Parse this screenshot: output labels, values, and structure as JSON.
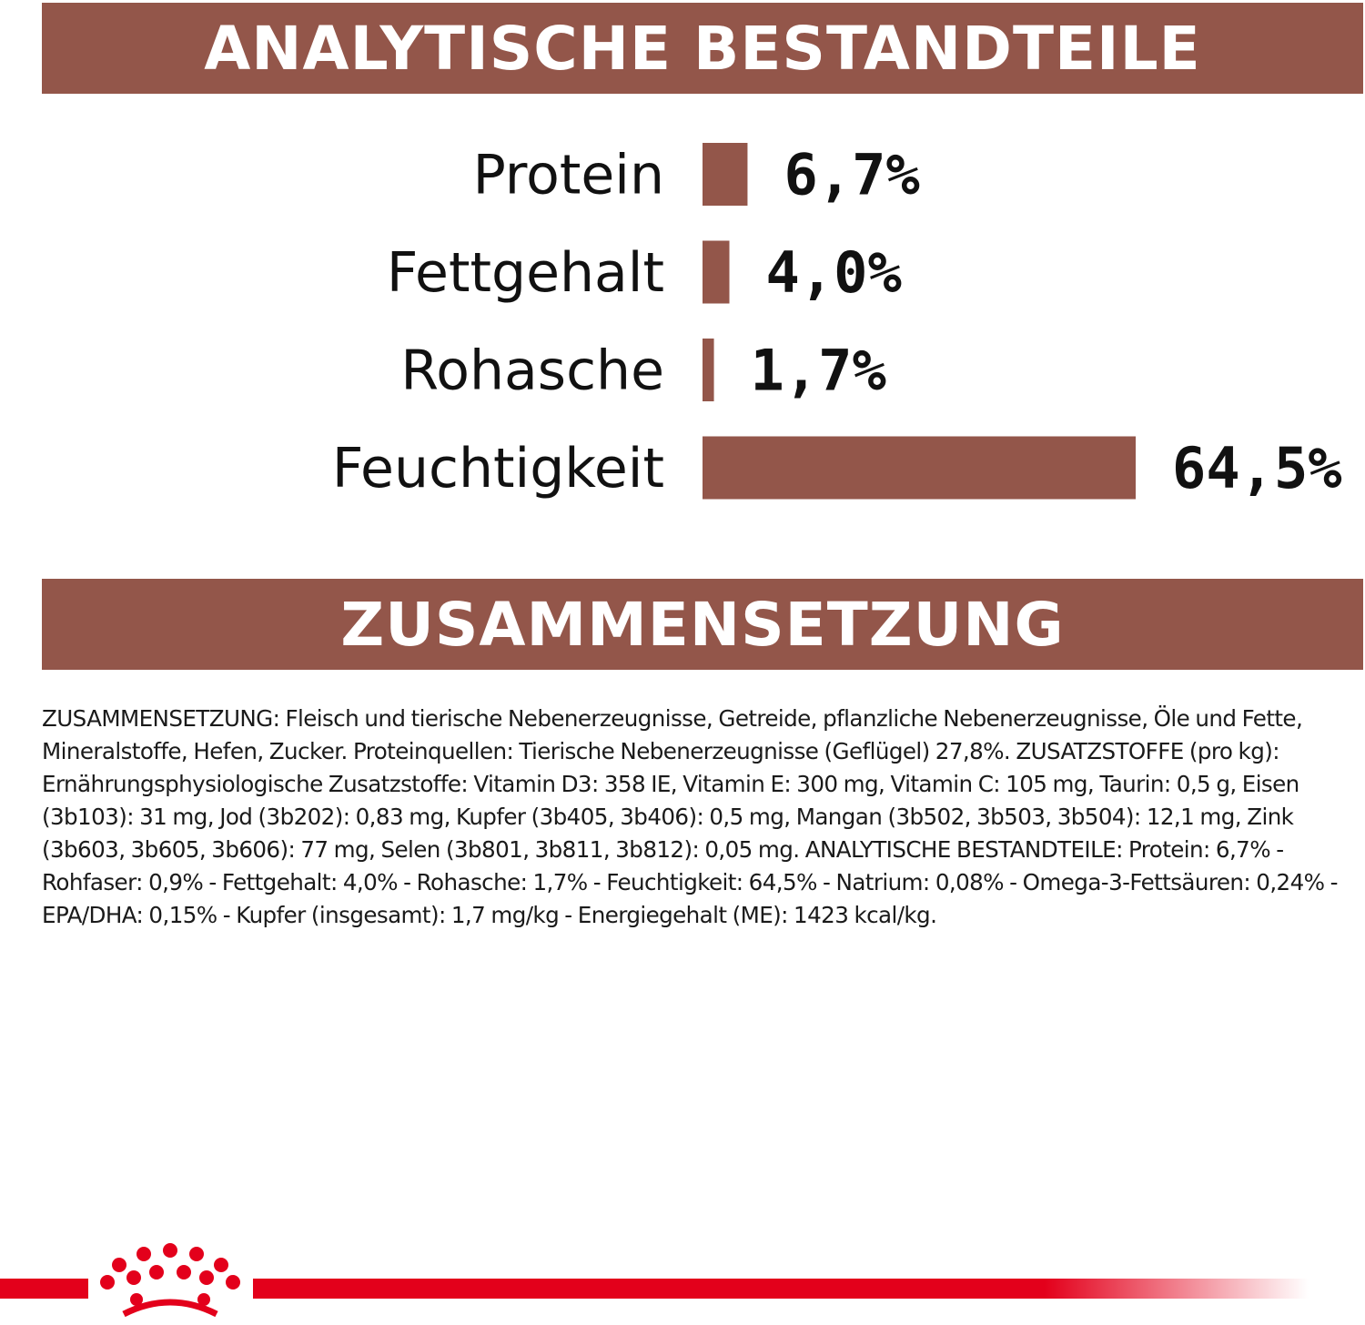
{
  "colors": {
    "accent": "#93564a",
    "brand_red": "#e3001b",
    "text": "#111111",
    "background": "#ffffff"
  },
  "header": {
    "analytics_title": "ANALYTISCHE BESTANDTEILE",
    "composition_title": "ZUSAMMENSETZUNG"
  },
  "chart_data": {
    "type": "bar",
    "orientation": "horizontal",
    "categories": [
      "Protein",
      "Fettgehalt",
      "Rohasche",
      "Feuchtigkeit"
    ],
    "values": [
      6.7,
      4.0,
      1.7,
      64.5
    ],
    "value_labels": [
      "6,7%",
      "4,0%",
      "1,7%",
      "64,5%"
    ],
    "unit": "%",
    "axis": "none",
    "grid": false,
    "legend": "none",
    "bar_color": "#93564a"
  },
  "composition": {
    "text": "ZUSAMMENSETZUNG: Fleisch und tierische Nebenerzeugnisse, Getreide, pflanzliche Nebenerzeugnisse, Öle und Fette, Mineralstoffe, Hefen, Zucker. Proteinquellen: Tierische Nebenerzeugnisse (Geflügel) 27,8%. ZUSATZSTOFFE (pro kg): Ernährungsphysiologische Zusatzstoffe: Vitamin D3: 358 IE, Vitamin E: 300 mg, Vitamin C: 105 mg, Taurin: 0,5 g, Eisen (3b103): 31 mg, Jod (3b202): 0,83 mg, Kupfer (3b405, 3b406): 0,5 mg, Mangan (3b502, 3b503, 3b504): 12,1 mg, Zink (3b603, 3b605, 3b606): 77 mg, Selen (3b801, 3b811, 3b812): 0,05 mg. ANALYTISCHE BESTANDTEILE: Protein: 6,7% - Rohfaser: 0,9% - Fettgehalt: 4,0% - Rohasche: 1,7% - Feuchtigkeit: 64,5% - Natrium: 0,08% - Omega-3-Fettsäuren: 0,24% - EPA/DHA: 0,15% - Kupfer (insgesamt): 1,7 mg/kg - Energiegehalt (ME): 1423 kcal/kg."
  },
  "footer": {
    "logo_icon": "crown-icon"
  }
}
